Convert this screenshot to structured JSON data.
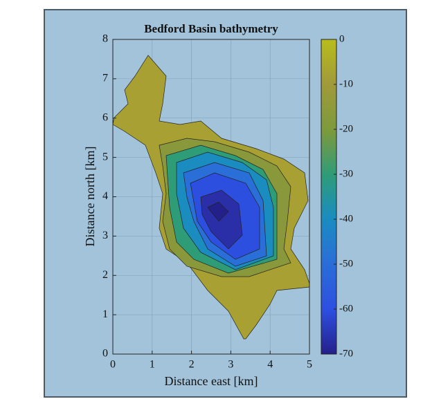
{
  "chart_data": {
    "type": "contour",
    "title": "Bedford Basin bathymetry",
    "xlabel": "Distance east [km]",
    "ylabel": "Distance north [km]",
    "xlim": [
      0,
      5
    ],
    "xticks": [
      0,
      1,
      2,
      3,
      4,
      5
    ],
    "ylim": [
      0,
      8
    ],
    "yticks": [
      0,
      1,
      2,
      3,
      4,
      5,
      6,
      7,
      8
    ],
    "grid": true,
    "colorbar": {
      "clim": [
        -70,
        0
      ],
      "ticks": [
        0,
        -10,
        -20,
        -30,
        -40,
        -50,
        -60,
        -70
      ]
    }
  }
}
